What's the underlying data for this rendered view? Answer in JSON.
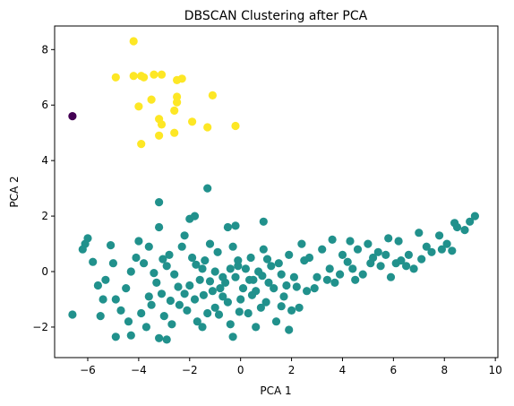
{
  "chart_data": {
    "type": "scatter",
    "title": "DBSCAN Clustering after PCA",
    "xlabel": "PCA 1",
    "ylabel": "PCA 2",
    "xlim": [
      -7.3,
      10.1
    ],
    "ylim": [
      -3.1,
      8.85
    ],
    "xticks": [
      -6,
      -4,
      -2,
      0,
      2,
      4,
      6,
      8,
      10
    ],
    "yticks": [
      -2,
      0,
      2,
      4,
      6,
      8
    ],
    "grid": false,
    "legend": "none",
    "series": [
      {
        "label_value": -1,
        "color": "#440154",
        "points": [
          [
            -6.6,
            5.6
          ]
        ]
      },
      {
        "label_value": 1,
        "color": "#fde725",
        "points": [
          [
            -4.2,
            8.3
          ],
          [
            -4.9,
            7.0
          ],
          [
            -4.2,
            7.05
          ],
          [
            -3.9,
            7.05
          ],
          [
            -3.8,
            7.0
          ],
          [
            -3.4,
            7.1
          ],
          [
            -3.1,
            7.1
          ],
          [
            -2.5,
            6.9
          ],
          [
            -2.3,
            6.95
          ],
          [
            -3.5,
            6.2
          ],
          [
            -2.5,
            6.3
          ],
          [
            -2.5,
            6.1
          ],
          [
            -1.1,
            6.35
          ],
          [
            -2.6,
            5.8
          ],
          [
            -4.0,
            5.95
          ],
          [
            -3.2,
            5.5
          ],
          [
            -3.1,
            5.3
          ],
          [
            -2.6,
            5.0
          ],
          [
            -1.9,
            5.4
          ],
          [
            -1.3,
            5.2
          ],
          [
            -0.2,
            5.25
          ],
          [
            -3.2,
            4.9
          ],
          [
            -3.9,
            4.6
          ]
        ]
      },
      {
        "label_value": 0,
        "color": "#21918c",
        "points": [
          [
            -3.2,
            2.5
          ],
          [
            -1.3,
            3.0
          ],
          [
            -2.0,
            1.9
          ],
          [
            -1.8,
            2.0
          ],
          [
            -0.2,
            1.65
          ],
          [
            0.9,
            1.8
          ],
          [
            -6.0,
            1.2
          ],
          [
            -6.1,
            1.0
          ],
          [
            -6.6,
            -1.55
          ],
          [
            -5.5,
            -1.6
          ],
          [
            -4.9,
            -2.35
          ],
          [
            -4.3,
            -2.3
          ],
          [
            -3.2,
            -2.4
          ],
          [
            -2.9,
            -2.45
          ],
          [
            -0.3,
            -2.35
          ],
          [
            -5.1,
            0.95
          ],
          [
            -5.8,
            0.35
          ],
          [
            -5.6,
            -0.5
          ],
          [
            -4.0,
            1.1
          ],
          [
            -3.6,
            0.9
          ],
          [
            -3.2,
            1.6
          ],
          [
            -2.2,
            1.3
          ],
          [
            -1.2,
            1.0
          ],
          [
            -0.5,
            1.6
          ],
          [
            3.6,
            1.15
          ],
          [
            4.3,
            1.1
          ],
          [
            5.0,
            1.0
          ],
          [
            5.8,
            1.2
          ],
          [
            6.2,
            1.1
          ],
          [
            7.0,
            1.4
          ],
          [
            7.8,
            1.3
          ],
          [
            8.5,
            1.6
          ],
          [
            9.0,
            1.8
          ],
          [
            9.2,
            2.0
          ],
          [
            8.4,
            1.75
          ],
          [
            7.9,
            0.8
          ],
          [
            8.3,
            0.75
          ],
          [
            7.3,
            0.9
          ],
          [
            6.6,
            0.6
          ],
          [
            6.1,
            0.3
          ],
          [
            5.5,
            0.2
          ],
          [
            4.8,
            -0.1
          ],
          [
            4.2,
            0.35
          ],
          [
            3.5,
            0.1
          ],
          [
            3.0,
            -0.2
          ],
          [
            2.5,
            0.4
          ],
          [
            1.8,
            -0.5
          ],
          [
            1.2,
            0.2
          ],
          [
            0.5,
            -0.3
          ],
          [
            -0.1,
            0.4
          ],
          [
            -0.8,
            -0.6
          ],
          [
            -1.5,
            0.1
          ],
          [
            -2.2,
            -0.8
          ],
          [
            -2.9,
            0.2
          ],
          [
            -3.6,
            -0.9
          ],
          [
            -4.3,
            0.0
          ],
          [
            -4.9,
            -1.0
          ],
          [
            -5.3,
            -0.3
          ],
          [
            -3.9,
            -1.5
          ],
          [
            -3.0,
            -1.6
          ],
          [
            -2.4,
            -1.2
          ],
          [
            -1.7,
            -1.8
          ],
          [
            -1.0,
            -1.3
          ],
          [
            -0.4,
            -1.9
          ],
          [
            0.3,
            -1.5
          ],
          [
            1.0,
            -1.1
          ],
          [
            1.7,
            -0.9
          ],
          [
            2.3,
            -1.3
          ],
          [
            2.9,
            -0.6
          ],
          [
            3.7,
            -0.4
          ],
          [
            4.5,
            -0.3
          ],
          [
            5.2,
            0.5
          ],
          [
            6.5,
            0.2
          ],
          [
            7.1,
            0.45
          ],
          [
            5.9,
            -0.2
          ],
          [
            -0.2,
            -0.2
          ],
          [
            0.2,
            0.1
          ],
          [
            -0.6,
            -0.4
          ],
          [
            -1.1,
            -0.7
          ],
          [
            -1.6,
            -0.3
          ],
          [
            -2.0,
            -0.5
          ],
          [
            -2.6,
            -0.1
          ],
          [
            -3.3,
            -0.4
          ],
          [
            -3.8,
            0.3
          ],
          [
            -4.5,
            -0.6
          ],
          [
            0.6,
            -0.7
          ],
          [
            1.1,
            -0.4
          ],
          [
            1.5,
            0.3
          ],
          [
            2.1,
            -0.2
          ],
          [
            2.7,
            0.5
          ],
          [
            3.2,
            0.8
          ],
          [
            -0.9,
            0.7
          ],
          [
            -1.9,
            0.5
          ],
          [
            -2.8,
            0.6
          ],
          [
            -4.1,
            0.5
          ],
          [
            0.0,
            -1.0
          ],
          [
            -0.5,
            -1.1
          ],
          [
            -1.3,
            -1.5
          ],
          [
            0.8,
            -1.3
          ],
          [
            1.4,
            -1.8
          ],
          [
            2.0,
            -1.4
          ],
          [
            -3.5,
            -1.2
          ],
          [
            -2.1,
            -1.4
          ],
          [
            -0.7,
            -0.9
          ],
          [
            0.4,
            0.5
          ],
          [
            1.9,
            0.6
          ],
          [
            4.0,
            0.6
          ],
          [
            4.6,
            0.8
          ],
          [
            5.4,
            0.7
          ],
          [
            6.8,
            0.1
          ],
          [
            -1.4,
            0.4
          ],
          [
            -0.3,
            0.9
          ],
          [
            0.9,
            0.8
          ],
          [
            2.4,
            1.0
          ],
          [
            -5.0,
            0.3
          ],
          [
            -4.7,
            -1.4
          ],
          [
            -3.1,
            -0.8
          ],
          [
            -2.3,
            0.9
          ],
          [
            -1.8,
            -1.0
          ],
          [
            -1.0,
            0.0
          ],
          [
            0.7,
            0.0
          ],
          [
            1.6,
            -0.1
          ],
          [
            2.6,
            -0.7
          ],
          [
            3.4,
            -0.3
          ],
          [
            3.9,
            -0.1
          ],
          [
            4.4,
            0.1
          ],
          [
            5.1,
            0.3
          ],
          [
            5.7,
            0.6
          ],
          [
            6.3,
            0.4
          ],
          [
            7.5,
            0.7
          ],
          [
            8.1,
            1.0
          ],
          [
            8.8,
            1.5
          ],
          [
            -6.2,
            0.8
          ],
          [
            -5.4,
            -1.0
          ],
          [
            -4.4,
            -1.8
          ],
          [
            -3.7,
            -2.0
          ],
          [
            -2.7,
            -1.9
          ],
          [
            -1.5,
            -2.0
          ],
          [
            0.6,
            -2.0
          ],
          [
            1.9,
            -2.1
          ],
          [
            -0.1,
            0.2
          ],
          [
            -0.4,
            0.1
          ],
          [
            -0.7,
            -0.2
          ],
          [
            0.1,
            -0.6
          ],
          [
            0.35,
            -0.3
          ],
          [
            -1.2,
            -0.35
          ],
          [
            -1.45,
            -0.85
          ],
          [
            -0.85,
            -1.55
          ],
          [
            0.45,
            -0.85
          ],
          [
            1.3,
            -0.6
          ],
          [
            1.6,
            -1.25
          ],
          [
            2.2,
            -0.55
          ],
          [
            -2.45,
            -0.55
          ],
          [
            -2.75,
            -1.05
          ],
          [
            -3.4,
            -0.05
          ],
          [
            -3.05,
            0.45
          ],
          [
            -1.75,
            0.25
          ],
          [
            -0.05,
            -1.45
          ],
          [
            1.05,
            0.45
          ],
          [
            0.85,
            -0.15
          ]
        ]
      }
    ]
  }
}
